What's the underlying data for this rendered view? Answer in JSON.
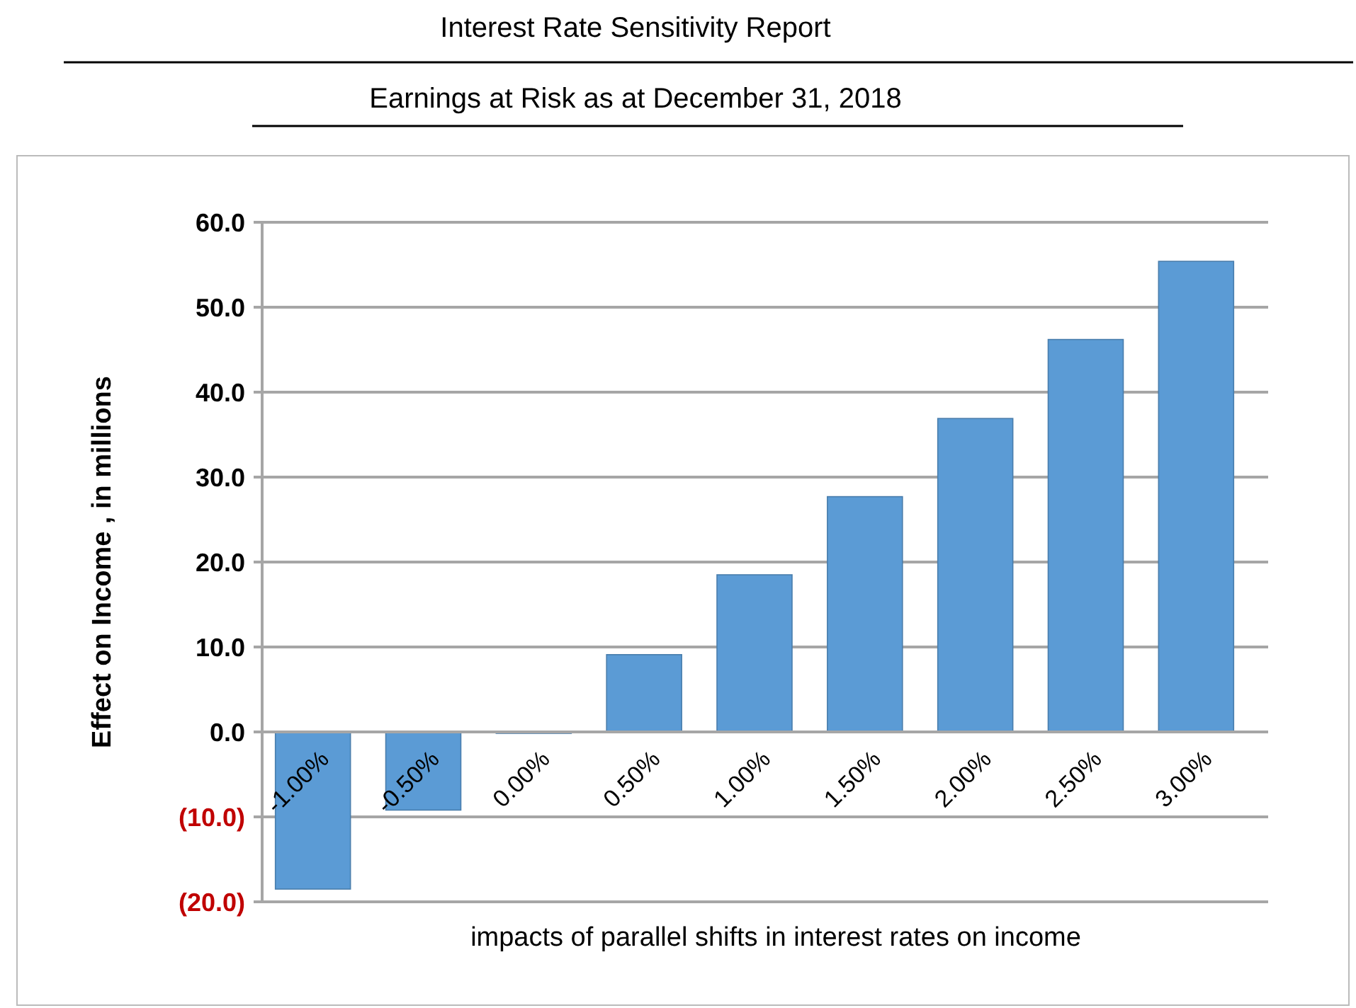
{
  "chart_data": {
    "type": "bar",
    "title": "Interest Rate Sensitivity Report",
    "subtitle": "Earnings at Risk as at December 31, 2018",
    "xlabel": "impacts of parallel shifts in interest rates on income",
    "ylabel": "Effect on Income , in millions",
    "categories": [
      "-1.00%",
      "-0.50%",
      "0.00%",
      "0.50%",
      "1.00%",
      "1.50%",
      "2.00%",
      "2.50%",
      "3.00%"
    ],
    "values": [
      -18.5,
      -9.2,
      0,
      9.1,
      18.5,
      27.7,
      36.9,
      46.2,
      55.4
    ],
    "color": "#5b9bd5",
    "ylim": [
      -20,
      60
    ],
    "yticks": [
      {
        "value": -20,
        "label": "(20.0)"
      },
      {
        "value": -10,
        "label": "(10.0)"
      },
      {
        "value": 0,
        "label": "0.0"
      },
      {
        "value": 10,
        "label": "10.0"
      },
      {
        "value": 20,
        "label": "20.0"
      },
      {
        "value": 30,
        "label": "30.0"
      },
      {
        "value": 40,
        "label": "40.0"
      },
      {
        "value": 50,
        "label": "50.0"
      },
      {
        "value": 60,
        "label": "60.0"
      }
    ],
    "grid": "y"
  }
}
